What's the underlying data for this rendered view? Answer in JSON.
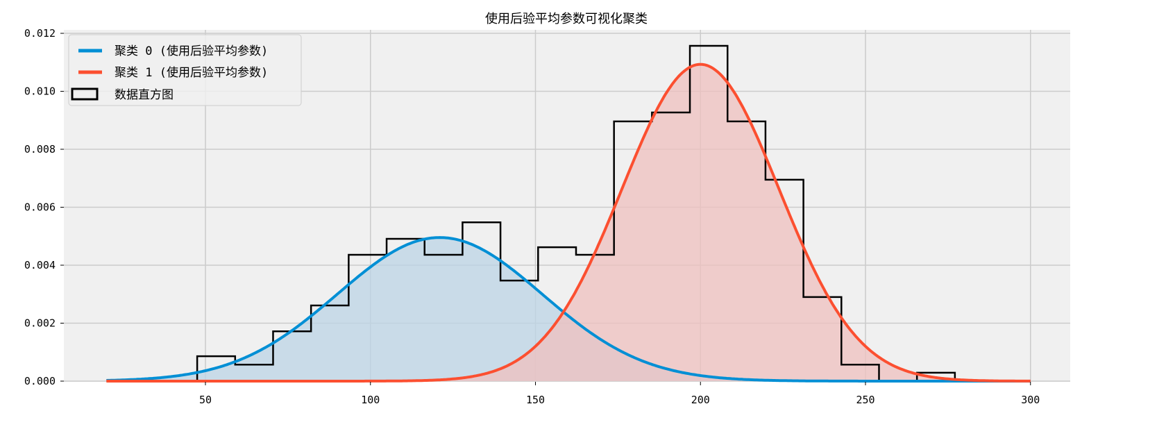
{
  "chart_data": {
    "type": "histogram+line",
    "title": "使用后验平均参数可视化聚类",
    "xlabel": "",
    "ylabel": "",
    "xlim": [
      8,
      312
    ],
    "ylim": [
      0,
      0.0122
    ],
    "xticks": [
      50,
      100,
      150,
      200,
      250,
      300
    ],
    "yticks": [
      0.0,
      0.002,
      0.004,
      0.006,
      0.008,
      0.01,
      0.012
    ],
    "grid": true,
    "legend_placement": "top-left",
    "histogram": {
      "name": "数据直方图",
      "color": "#000000",
      "bin_edges": [
        47.5,
        59.0,
        70.5,
        82.0,
        93.4,
        104.9,
        116.4,
        127.9,
        139.4,
        150.8,
        162.3,
        173.8,
        185.3,
        196.8,
        208.2,
        219.7,
        231.2,
        242.7,
        254.1,
        265.6,
        277.1
      ],
      "density": [
        0.00086,
        0.00057,
        0.00172,
        0.00261,
        0.00436,
        0.00491,
        0.00436,
        0.00548,
        0.00347,
        0.00462,
        0.00436,
        0.00896,
        0.00927,
        0.01157,
        0.00896,
        0.00695,
        0.0029,
        0.00057,
        0.0,
        0.00029
      ]
    },
    "series": [
      {
        "name": "聚类 0 (使用后验平均参数)",
        "color": "#008fd5",
        "fill": "#bcd4e6",
        "mean": 121,
        "std": 31,
        "weight": 0.385,
        "x_range": [
          20,
          300
        ]
      },
      {
        "name": "聚类 1 (使用后验平均参数)",
        "color": "#fc4f30",
        "fill": "#efc0bf",
        "mean": 200,
        "std": 23.8,
        "weight": 0.652,
        "x_range": [
          20,
          300
        ]
      }
    ]
  }
}
